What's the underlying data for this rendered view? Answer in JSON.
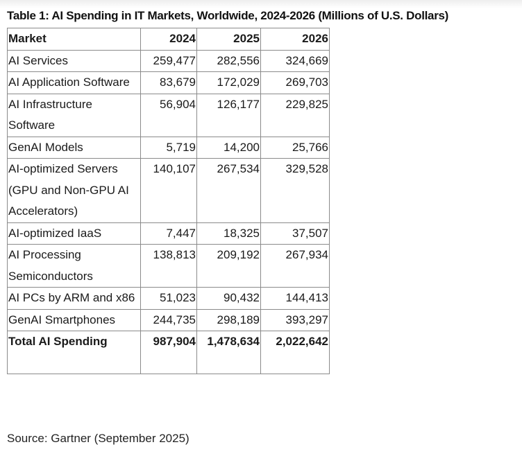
{
  "title": "Table 1: AI Spending in IT Markets, Worldwide, 2024-2026 (Millions of U.S. Dollars)",
  "table": {
    "headers": [
      "Market",
      "2024",
      "2025",
      "2026"
    ],
    "rows": [
      [
        "AI Services",
        "259,477",
        "282,556",
        "324,669"
      ],
      [
        "AI Application Software",
        "83,679",
        "172,029",
        "269,703"
      ],
      [
        "AI Infrastructure Software",
        "56,904",
        "126,177",
        "229,825"
      ],
      [
        "GenAI Models",
        "5,719",
        "14,200",
        "25,766"
      ],
      [
        "AI-optimized Servers (GPU and Non-GPU AI Accelerators)",
        "140,107",
        "267,534",
        "329,528"
      ],
      [
        "AI-optimized IaaS",
        "7,447",
        "18,325",
        "37,507"
      ],
      [
        "AI Processing Semiconductors",
        "138,813",
        "209,192",
        "267,934"
      ],
      [
        "AI PCs by ARM and x86",
        "51,023",
        "90,432",
        "144,413"
      ],
      [
        "GenAI Smartphones",
        "244,735",
        "298,189",
        "393,297"
      ]
    ],
    "total": [
      "Total AI Spending",
      "987,904",
      "1,478,634",
      "2,022,642"
    ]
  },
  "source": "Source: Gartner (September 2025)"
}
